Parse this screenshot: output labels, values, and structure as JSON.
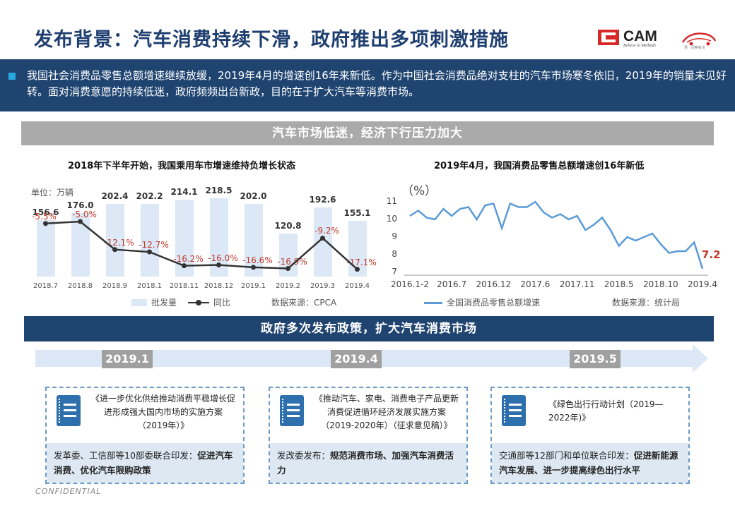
{
  "header": {
    "title": "发布背景：汽车消费持续下滑，政府推出多项刺激措施",
    "logo_text": "CAM",
    "logo_tagline": "Believe in Methods",
    "partner_logo_text": "慧 · 观察者说"
  },
  "intro": {
    "text": "我国社会消费品零售总额增速继续放缓，2019年4月的增速创16年来新低。作为中国社会消费品绝对支柱的汽车市场寒冬依旧，2019年的销量未见好转。面对消费意愿的持续低迷，政府频频出台新政，目的在于扩大汽车等消费市场。"
  },
  "section1": {
    "banner": "汽车市场低迷，经济下行压力加大"
  },
  "chart_data": [
    {
      "type": "bar",
      "title": "2018年下半年开始，我国乘用车市增速维持负增长状态",
      "unit_label": "单位：万辆",
      "categories": [
        "2018.7",
        "2018.8",
        "2018.9",
        "2018.1",
        "2018.11",
        "2018.12",
        "2019.1",
        "2019.2",
        "2019.3",
        "2019.4"
      ],
      "series": [
        {
          "name": "批发量",
          "values": [
            156.6,
            176.0,
            202.4,
            202.2,
            214.1,
            218.5,
            202.0,
            120.8,
            192.6,
            155.1
          ],
          "labels": [
            "156.6",
            "176.0",
            "202.4",
            "202.2",
            "214.1",
            "218.5",
            "202.0",
            "120.8",
            "192.6",
            "155.1"
          ]
        },
        {
          "name": "同比",
          "values": [
            -5.5,
            -5.0,
            -12.1,
            -12.7,
            -16.2,
            -16.0,
            -16.6,
            -16.9,
            -9.2,
            -17.1
          ],
          "labels": [
            "-5.5%",
            "-5.0%",
            "-12.1%",
            "-12.7%",
            "-16.2%",
            "-16.0%",
            "-16.6%",
            "-16.9%",
            "-9.2%",
            "-17.1%"
          ]
        }
      ],
      "source": "数据来源：CPCA",
      "colors": {
        "bar": "#dce8f6",
        "line": "#333333",
        "label": "#c0392b"
      }
    },
    {
      "type": "line",
      "title": "2019年4月，我国消费品零售总额增速创16年新低",
      "ylabel": "（%）",
      "ylim": [
        7,
        11
      ],
      "yticks": [
        "11",
        "10",
        "9",
        "8",
        "7"
      ],
      "xticks": [
        "2016.1-2",
        "2016.7",
        "2016.12",
        "2017.6",
        "2017.11",
        "2018.5",
        "2018.10",
        "2019.4"
      ],
      "series": [
        {
          "name": "全国消费品零售总额增速",
          "values": [
            10.2,
            10.5,
            10.1,
            10.0,
            10.6,
            10.2,
            10.6,
            10.7,
            10.0,
            10.8,
            10.9,
            9.5,
            10.9,
            10.7,
            10.7,
            11.0,
            10.4,
            10.1,
            10.3,
            10.0,
            10.2,
            9.4,
            9.7,
            10.1,
            9.4,
            8.5,
            9.0,
            8.8,
            9.0,
            9.2,
            8.6,
            8.1,
            8.2,
            8.2,
            8.7,
            7.2
          ]
        }
      ],
      "last_value_label": "7.2",
      "source": "数据来源：统计局",
      "colors": {
        "line": "#5b9bd5",
        "label": "#c0392b"
      }
    }
  ],
  "section2": {
    "banner": "政府多次发布政策，扩大汽车消费市场"
  },
  "timeline": {
    "dates": [
      "2019.1",
      "2019.4",
      "2019.5"
    ],
    "policies": [
      {
        "doc": "《进一步优化供给推动消费平稳增长促进形成强大国内市场的实施方案（2019年）》",
        "org": "发革委、工信部等10部委联合印发：",
        "goal": "促进汽车消费、优化汽车限购政策"
      },
      {
        "doc": "《推动汽车、家电、消费电子产品更新消费促进循环经济发展实施方案（2019-2020年）（征求意见稿）》",
        "org": "发改委发布：",
        "goal": "规范消费市场、加强汽车消费活力"
      },
      {
        "doc": "《绿色出行行动计划（2019—2022年)》",
        "org": "交通部等12部门和单位联合印发：",
        "goal": "促进新能源汽车发展、进一步提高绿色出行水平"
      }
    ]
  },
  "footer": {
    "confidential": "CONFIDENTIAL"
  }
}
